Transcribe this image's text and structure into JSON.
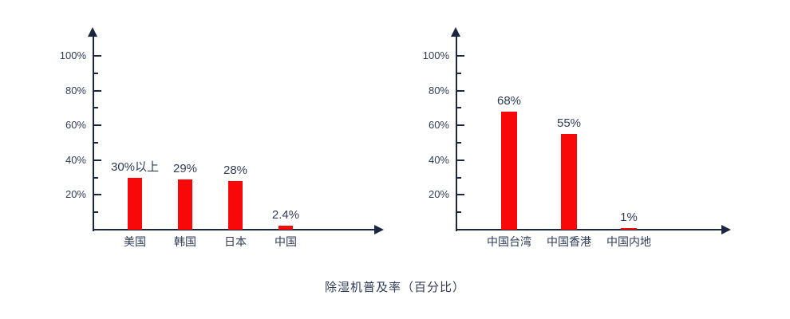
{
  "page": {
    "caption": "除湿机普及率（百分比）",
    "background": "#ffffff"
  },
  "colors": {
    "bar": "#f80808",
    "axis": "#1a2742",
    "label_text": "#2e3d59"
  },
  "chart_data": [
    {
      "type": "bar",
      "title": "",
      "xlabel": "",
      "ylabel": "",
      "categories": [
        "美国",
        "韩国",
        "日本",
        "中国"
      ],
      "values": [
        30,
        29,
        28,
        2.4
      ],
      "data_labels": [
        "30%以上",
        "29%",
        "28%",
        "2.4%"
      ],
      "ylim": [
        0,
        115
      ],
      "yticks": [
        20,
        40,
        60,
        80,
        100
      ],
      "ytick_labels": [
        "20%",
        "40%",
        "60%",
        "80%",
        "100%"
      ],
      "yticks_minor": [
        10,
        30,
        50,
        70,
        90
      ],
      "grid": false,
      "legend": false,
      "axis_arrows": true,
      "bar_color": "#f80808"
    },
    {
      "type": "bar",
      "title": "",
      "xlabel": "",
      "ylabel": "",
      "categories": [
        "中国台湾",
        "中国香港",
        "中国内地"
      ],
      "values": [
        68,
        55,
        1
      ],
      "data_labels": [
        "68%",
        "55%",
        "1%"
      ],
      "ylim": [
        0,
        115
      ],
      "yticks": [
        20,
        40,
        60,
        80,
        100
      ],
      "ytick_labels": [
        "20%",
        "40%",
        "60%",
        "80%",
        "100%"
      ],
      "yticks_minor": [
        10,
        30,
        50,
        70,
        90
      ],
      "grid": false,
      "legend": false,
      "axis_arrows": true,
      "bar_color": "#f80808"
    }
  ]
}
